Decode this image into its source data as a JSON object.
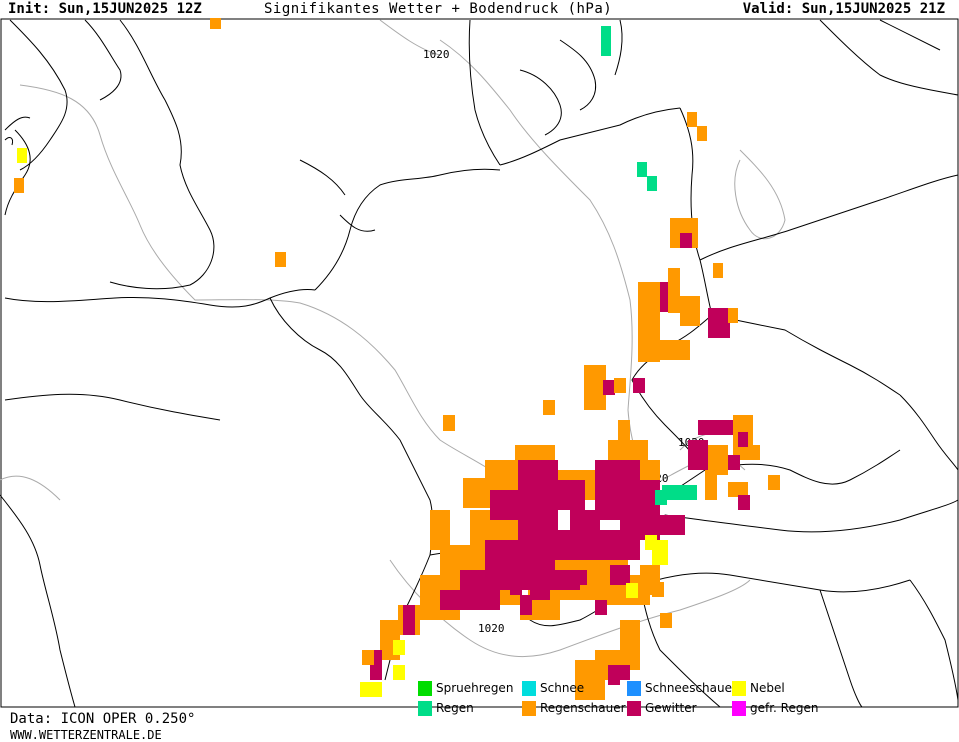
{
  "header": {
    "init": "Init: Sun,15JUN2025 12Z",
    "title": "Signifikantes Wetter + Bodendruck (hPa)",
    "valid": "Valid: Sun,15JUN2025 21Z"
  },
  "isobar_labels": [
    "1020",
    "1020",
    "1020",
    "1020"
  ],
  "legend": [
    {
      "label": "Spruehregen",
      "color": "#00dd00"
    },
    {
      "label": "Regen",
      "color": "#00dd88"
    },
    {
      "label": "Schnee",
      "color": "#00dddd"
    },
    {
      "label": "Regenschauer",
      "color": "#ff9900"
    },
    {
      "label": "Schneeschauer",
      "color": "#1e90ff"
    },
    {
      "label": "Gewitter",
      "color": "#c0005a"
    },
    {
      "label": "Nebel",
      "color": "#ffff00"
    },
    {
      "label": "gefr. Regen",
      "color": "#ff00ff"
    }
  ],
  "colors": {
    "regenschauer": "#ff9900",
    "gewitter": "#c0005a",
    "nebel": "#ffff00",
    "regen": "#00dd88",
    "coastline": "#000000",
    "isobar": "#aaaaaa"
  },
  "footer": {
    "data": "Data: ICON OPER 0.250°",
    "site": "WWW.WETTERZENTRALE.DE"
  }
}
